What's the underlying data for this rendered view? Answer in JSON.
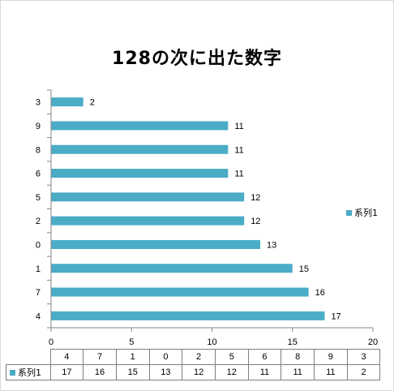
{
  "chart_data": {
    "type": "bar",
    "orientation": "horizontal",
    "title": "128の次に出た数字",
    "categories": [
      "3",
      "9",
      "8",
      "6",
      "5",
      "2",
      "0",
      "1",
      "7",
      "4"
    ],
    "series": [
      {
        "name": "系列1",
        "values": [
          2,
          11,
          11,
          11,
          12,
          12,
          13,
          15,
          16,
          17
        ]
      }
    ],
    "xlim": [
      0,
      20
    ],
    "xticks": [
      "0",
      "5",
      "10",
      "15",
      "20"
    ],
    "grid": false,
    "legend": "right",
    "data_table": {
      "categories": [
        "4",
        "7",
        "1",
        "0",
        "2",
        "5",
        "6",
        "8",
        "9",
        "3"
      ],
      "series_name": "系列1",
      "values": [
        "17",
        "16",
        "15",
        "13",
        "12",
        "12",
        "11",
        "11",
        "11",
        "2"
      ]
    },
    "colors": {
      "bar": "#4bacc6"
    }
  }
}
